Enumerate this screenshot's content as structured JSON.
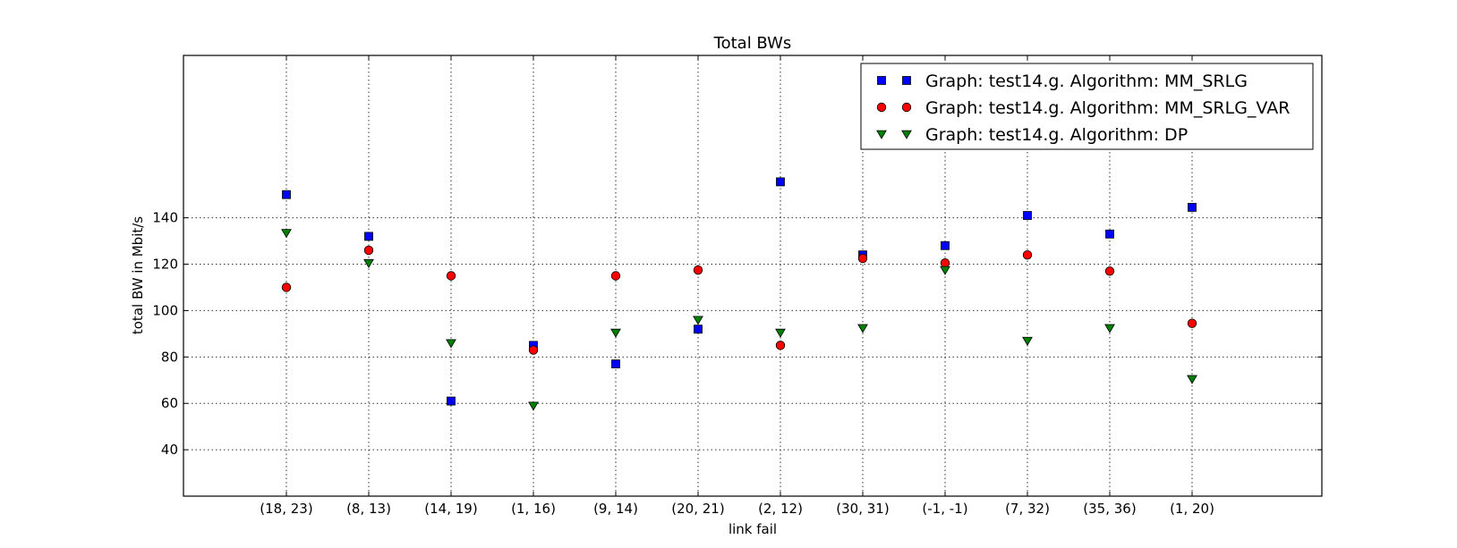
{
  "chart_data": {
    "type": "scatter",
    "title": "Total BWs",
    "xlabel": "link fail",
    "ylabel": "total BW in Mbit/s",
    "categories": [
      "(18, 23)",
      "(8, 13)",
      "(14, 19)",
      "(1, 16)",
      "(9, 14)",
      "(20, 21)",
      "(2, 12)",
      "(30, 31)",
      "(-1, -1)",
      "(7, 32)",
      "(35, 36)",
      "(1, 20)"
    ],
    "ylim": [
      20,
      210
    ],
    "yticks": [
      40,
      60,
      80,
      100,
      120,
      140
    ],
    "grid": true,
    "legend_position": "top-right",
    "series": [
      {
        "name": "Graph: test14.g. Algorithm: MM_SRLG",
        "marker": "square",
        "color": "#0000ff",
        "values": [
          150,
          132,
          61,
          85,
          77,
          92,
          155.5,
          124,
          128,
          141,
          133,
          144.5
        ]
      },
      {
        "name": "Graph: test14.g. Algorithm: MM_SRLG_VAR",
        "marker": "circle",
        "color": "#ff0000",
        "values": [
          110,
          126,
          115,
          83,
          115,
          117.5,
          85,
          122.5,
          120.5,
          124,
          117,
          94.5
        ]
      },
      {
        "name": "Graph: test14.g. Algorithm: DP",
        "marker": "triangle-down",
        "color": "#008000",
        "values": [
          133.5,
          120.5,
          86,
          59,
          90.5,
          96,
          90.5,
          92.5,
          117.5,
          87,
          92.5,
          70.5
        ]
      }
    ]
  }
}
